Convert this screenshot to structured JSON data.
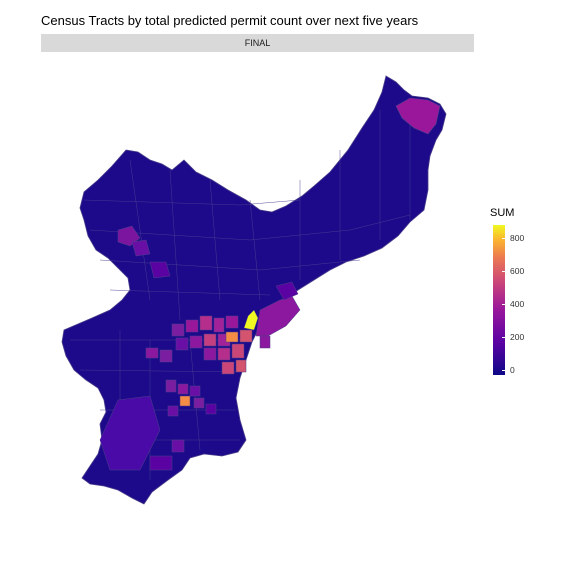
{
  "title": "Census Tracts by total predicted permit count over next five years",
  "facet_label": "FINAL",
  "legend": {
    "title": "SUM",
    "ticks": [
      "800",
      "600",
      "400",
      "200",
      "0"
    ]
  },
  "colors": {
    "low": "#1c0a8a",
    "mid_low": "#5b02a3",
    "mid": "#9a179b",
    "mid_high": "#cb4678",
    "high": "#eb7852",
    "very_high": "#fbb32f",
    "max": "#f0f921",
    "tract_border": "#4a3f8a"
  }
}
